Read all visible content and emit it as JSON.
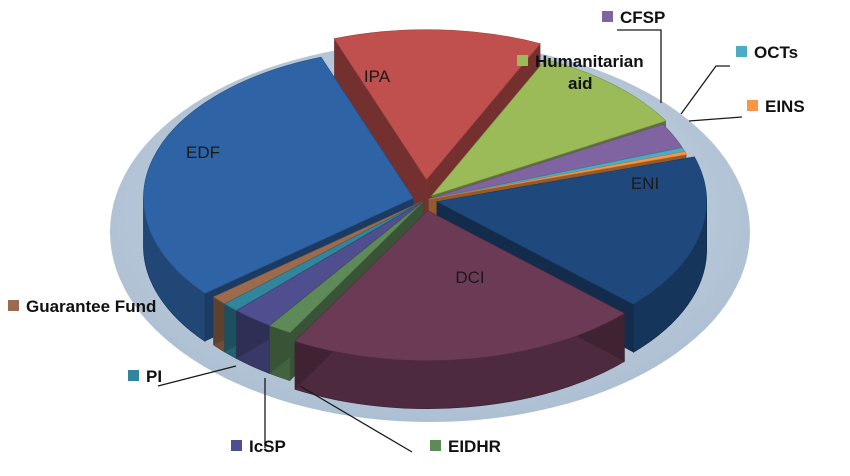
{
  "chart_data": {
    "type": "pie",
    "title": "",
    "style": "3d-exploded",
    "legend": "inline-callouts",
    "slices": [
      {
        "label": "IPA",
        "value": 11.5,
        "color": "#c0504d"
      },
      {
        "label": "Humanitarian aid",
        "value": 9.0,
        "color": "#9bbb59"
      },
      {
        "label": "CFSP",
        "value": 2.5,
        "color": "#8064a2"
      },
      {
        "label": "OCTs",
        "value": 0.4,
        "color": "#4bacc6"
      },
      {
        "label": "EINS",
        "value": 0.3,
        "color": "#f79646"
      },
      {
        "label": "ENI",
        "value": 15.5,
        "color": "#1f497d"
      },
      {
        "label": "DCI",
        "value": 19.5,
        "color": "#6b3a55"
      },
      {
        "label": "EIDHR",
        "value": 1.3,
        "color": "#5d8a58"
      },
      {
        "label": "IcSP",
        "value": 2.3,
        "color": "#4f4f8f"
      },
      {
        "label": "PI",
        "value": 0.9,
        "color": "#31859c"
      },
      {
        "label": "Guarantee  Fund",
        "value": 0.9,
        "color": "#9c6b4e"
      },
      {
        "label": "EDF",
        "value": 28.0,
        "color": "#2e63a5"
      }
    ]
  }
}
